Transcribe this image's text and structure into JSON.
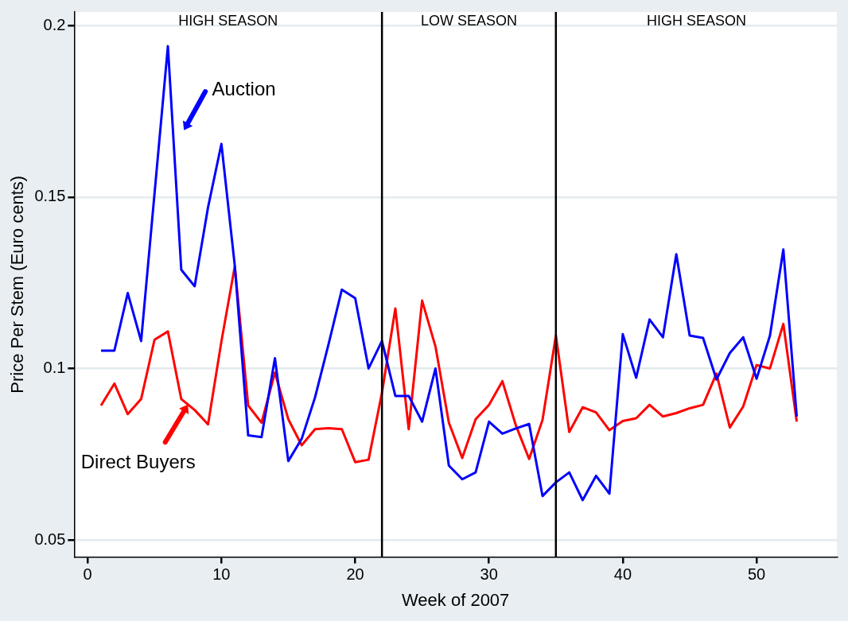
{
  "chart_data": {
    "type": "line",
    "xlabel": "Week of 2007",
    "ylabel": "Price Per Stem (Euro cents)",
    "xlim": [
      -1,
      56
    ],
    "xticks": [
      0,
      10,
      20,
      30,
      40,
      50
    ],
    "ylim": [
      0.045,
      0.204
    ],
    "yticks": [
      0.05,
      0.1,
      0.15,
      0.2
    ],
    "grid": "y",
    "marker": "none",
    "line_style": "solid",
    "x": [
      1,
      2,
      3,
      4,
      5,
      6,
      7,
      8,
      9,
      10,
      11,
      12,
      13,
      14,
      15,
      16,
      17,
      18,
      19,
      20,
      21,
      22,
      23,
      24,
      25,
      26,
      27,
      28,
      29,
      30,
      31,
      32,
      33,
      34,
      35,
      36,
      37,
      38,
      39,
      40,
      41,
      42,
      43,
      44,
      45,
      46,
      47,
      48,
      49,
      50,
      51,
      52,
      53
    ],
    "series": [
      {
        "name": "Auction",
        "color": "#0000ff",
        "values": [
          0.1052,
          0.1052,
          0.122,
          0.108,
          0.151,
          0.194,
          0.1288,
          0.124,
          0.147,
          0.1655,
          0.13,
          0.0805,
          0.08,
          0.103,
          0.073,
          0.0795,
          0.0916,
          0.107,
          0.123,
          0.1205,
          0.1,
          0.108,
          0.092,
          0.092,
          0.0845,
          0.1,
          0.0717,
          0.0677,
          0.0697,
          0.0845,
          0.081,
          0.0825,
          0.0838,
          0.0628,
          0.0668,
          0.0697,
          0.0616,
          0.0687,
          0.0635,
          0.11,
          0.0973,
          0.1143,
          0.1091,
          0.1333,
          0.1096,
          0.1089,
          0.0968,
          0.1045,
          0.1091,
          0.097,
          0.1096,
          0.1347,
          0.086
        ]
      },
      {
        "name": "Direct Buyers",
        "color": "#ff0000",
        "values": [
          0.0892,
          0.0956,
          0.0867,
          0.0911,
          0.1084,
          0.1108,
          0.0911,
          0.0879,
          0.0837,
          0.1079,
          0.1298,
          0.0892,
          0.0842,
          0.0988,
          0.0852,
          0.0776,
          0.0823,
          0.0826,
          0.0823,
          0.0727,
          0.0734,
          0.0929,
          0.1175,
          0.0823,
          0.1198,
          0.1064,
          0.0842,
          0.0739,
          0.0852,
          0.0894,
          0.0963,
          0.0835,
          0.0736,
          0.085,
          0.1096,
          0.0815,
          0.0887,
          0.0872,
          0.082,
          0.0847,
          0.0855,
          0.0894,
          0.086,
          0.087,
          0.0884,
          0.0894,
          0.0985,
          0.0828,
          0.0889,
          0.101,
          0.1,
          0.113,
          0.0845
        ]
      }
    ],
    "ref_lines": [
      {
        "axis": "x",
        "value": 22,
        "color": "#000000"
      },
      {
        "axis": "x",
        "value": 35,
        "color": "#000000"
      }
    ],
    "annotations": [
      "HIGH SEASON",
      "LOW SEASON",
      "HIGH SEASON"
    ]
  }
}
